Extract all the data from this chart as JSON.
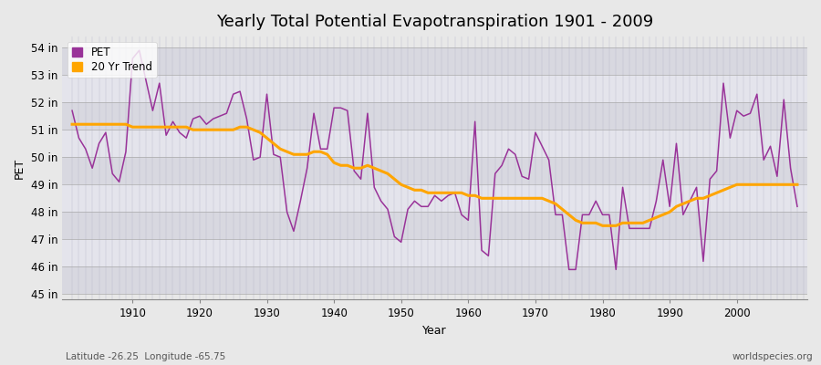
{
  "title": "Yearly Total Potential Evapotranspiration 1901 - 2009",
  "xlabel": "Year",
  "ylabel": "PET",
  "subtitle_left": "Latitude -26.25  Longitude -65.75",
  "subtitle_right": "worldspecies.org",
  "years": [
    1901,
    1902,
    1903,
    1904,
    1905,
    1906,
    1907,
    1908,
    1909,
    1910,
    1911,
    1912,
    1913,
    1914,
    1915,
    1916,
    1917,
    1918,
    1919,
    1920,
    1921,
    1922,
    1923,
    1924,
    1925,
    1926,
    1927,
    1928,
    1929,
    1930,
    1931,
    1932,
    1933,
    1934,
    1935,
    1936,
    1937,
    1938,
    1939,
    1940,
    1941,
    1942,
    1943,
    1944,
    1945,
    1946,
    1947,
    1948,
    1949,
    1950,
    1951,
    1952,
    1953,
    1954,
    1955,
    1956,
    1957,
    1958,
    1959,
    1960,
    1961,
    1962,
    1963,
    1964,
    1965,
    1966,
    1967,
    1968,
    1969,
    1970,
    1971,
    1972,
    1973,
    1974,
    1975,
    1976,
    1977,
    1978,
    1979,
    1980,
    1981,
    1982,
    1983,
    1984,
    1985,
    1986,
    1987,
    1988,
    1989,
    1990,
    1991,
    1992,
    1993,
    1994,
    1995,
    1996,
    1997,
    1998,
    1999,
    2000,
    2001,
    2002,
    2003,
    2004,
    2005,
    2006,
    2007,
    2008,
    2009
  ],
  "pet": [
    51.7,
    50.7,
    50.3,
    49.6,
    50.5,
    50.9,
    49.4,
    49.1,
    50.2,
    53.6,
    53.9,
    52.8,
    51.7,
    52.7,
    50.8,
    51.3,
    50.9,
    50.7,
    51.4,
    51.5,
    51.2,
    51.4,
    51.5,
    51.6,
    52.3,
    52.4,
    51.4,
    49.9,
    50.0,
    52.3,
    50.1,
    50.0,
    48.0,
    47.3,
    48.4,
    49.6,
    51.6,
    50.3,
    50.3,
    51.8,
    51.8,
    51.7,
    49.5,
    49.2,
    51.6,
    48.9,
    48.4,
    48.1,
    47.1,
    46.9,
    48.1,
    48.4,
    48.2,
    48.2,
    48.6,
    48.4,
    48.6,
    48.7,
    47.9,
    47.7,
    51.3,
    46.6,
    46.4,
    49.4,
    49.7,
    50.3,
    50.1,
    49.3,
    49.2,
    50.9,
    50.4,
    49.9,
    47.9,
    47.9,
    45.9,
    45.9,
    47.9,
    47.9,
    48.4,
    47.9,
    47.9,
    45.9,
    48.9,
    47.4,
    47.4,
    47.4,
    47.4,
    48.4,
    49.9,
    48.2,
    50.5,
    47.9,
    48.4,
    48.9,
    46.2,
    49.2,
    49.5,
    52.7,
    50.7,
    51.7,
    51.5,
    51.6,
    52.3,
    49.9,
    50.4,
    49.3,
    52.1,
    49.6,
    48.2
  ],
  "trend": [
    51.2,
    51.2,
    51.2,
    51.2,
    51.2,
    51.2,
    51.2,
    51.2,
    51.2,
    51.1,
    51.1,
    51.1,
    51.1,
    51.1,
    51.1,
    51.1,
    51.1,
    51.1,
    51.0,
    51.0,
    51.0,
    51.0,
    51.0,
    51.0,
    51.0,
    51.1,
    51.1,
    51.0,
    50.9,
    50.7,
    50.5,
    50.3,
    50.2,
    50.1,
    50.1,
    50.1,
    50.2,
    50.2,
    50.1,
    49.8,
    49.7,
    49.7,
    49.6,
    49.6,
    49.7,
    49.6,
    49.5,
    49.4,
    49.2,
    49.0,
    48.9,
    48.8,
    48.8,
    48.7,
    48.7,
    48.7,
    48.7,
    48.7,
    48.7,
    48.6,
    48.6,
    48.5,
    48.5,
    48.5,
    48.5,
    48.5,
    48.5,
    48.5,
    48.5,
    48.5,
    48.5,
    48.4,
    48.3,
    48.1,
    47.9,
    47.7,
    47.6,
    47.6,
    47.6,
    47.5,
    47.5,
    47.5,
    47.6,
    47.6,
    47.6,
    47.6,
    47.7,
    47.8,
    47.9,
    48.0,
    48.2,
    48.3,
    48.4,
    48.5,
    48.5,
    48.6,
    48.7,
    48.8,
    48.9,
    49.0,
    49.0,
    49.0,
    49.0,
    49.0,
    49.0,
    49.0,
    49.0,
    49.0,
    49.0
  ],
  "pet_color": "#993399",
  "trend_color": "#FFA500",
  "background_color": "#E8E8E8",
  "plot_bg_color": "#E8E8E8",
  "grid_h_color": "#CCCCCC",
  "grid_v_color": "#DDDDDD",
  "ylim": [
    44.8,
    54.4
  ],
  "yticks": [
    45,
    46,
    47,
    48,
    49,
    50,
    51,
    52,
    53,
    54
  ],
  "ytick_labels": [
    "45 in",
    "46 in",
    "47 in",
    "48 in",
    "49 in",
    "50 in",
    "51 in",
    "52 in",
    "53 in",
    "54 in"
  ],
  "xticks": [
    1910,
    1920,
    1930,
    1940,
    1950,
    1960,
    1970,
    1980,
    1990,
    2000
  ],
  "title_fontsize": 13,
  "label_fontsize": 9,
  "tick_fontsize": 8.5,
  "legend_labels": [
    "PET",
    "20 Yr Trend"
  ],
  "legend_colors": [
    "#993399",
    "#FFA500"
  ],
  "band_colors": [
    "#DCDCE4",
    "#E8E8F0"
  ]
}
